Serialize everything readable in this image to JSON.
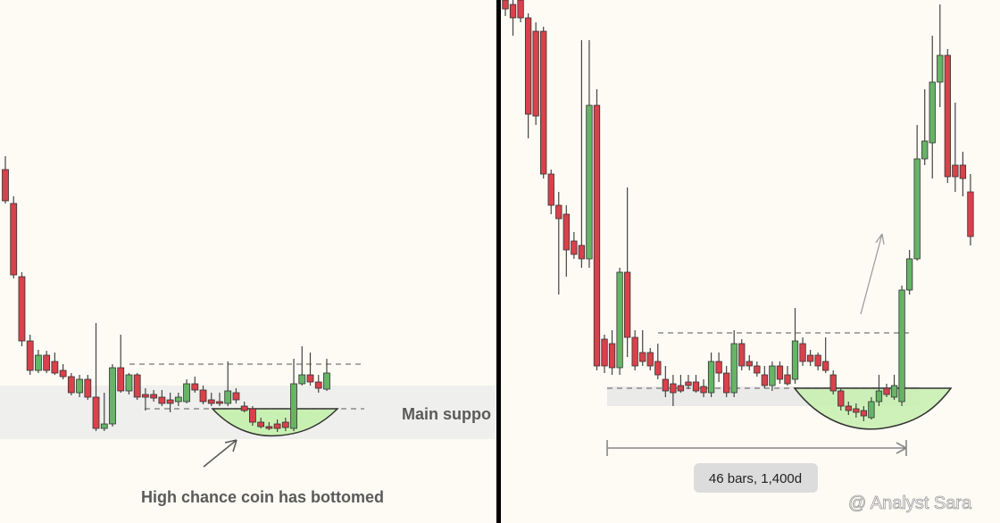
{
  "chart_data": [
    {
      "type": "candlestick",
      "ylim": [
        0,
        586
      ],
      "up_color": "#66b466",
      "down_color": "#d9414b",
      "annotations": [
        "Main suppo",
        "High chance coin has bottomed"
      ],
      "open": [
        396,
        358,
        276,
        204,
        171,
        188,
        181,
        171,
        164,
        146,
        161,
        141,
        106,
        111,
        174,
        148,
        166,
        144,
        144,
        141,
        138,
        136,
        136,
        156,
        149,
        138,
        136,
        134,
        146,
        131,
        128,
        113,
        108,
        111,
        113,
        106,
        156,
        166,
        158,
        150
      ],
      "high": [
        411,
        366,
        281,
        211,
        194,
        193,
        191,
        178,
        168,
        166,
        166,
        224,
        146,
        178,
        211,
        168,
        168,
        151,
        149,
        149,
        146,
        146,
        161,
        164,
        154,
        146,
        146,
        181,
        151,
        136,
        131,
        118,
        113,
        116,
        118,
        184,
        198,
        191,
        166,
        184
      ],
      "low": [
        358,
        274,
        198,
        166,
        168,
        168,
        166,
        161,
        143,
        141,
        138,
        103,
        103,
        108,
        146,
        144,
        138,
        126,
        136,
        131,
        124,
        131,
        134,
        146,
        133,
        131,
        131,
        131,
        134,
        124,
        109,
        106,
        104,
        102,
        103,
        103,
        154,
        154,
        146,
        148
      ],
      "close": [
        361,
        278,
        204,
        171,
        188,
        171,
        168,
        164,
        146,
        161,
        141,
        106,
        111,
        174,
        148,
        166,
        141,
        141,
        140,
        134,
        134,
        141,
        156,
        149,
        136,
        134,
        134,
        148,
        138,
        126,
        113,
        108,
        106,
        106,
        107,
        156,
        166,
        158,
        151,
        168
      ]
    },
    {
      "type": "candlestick",
      "ylim": [
        0,
        586
      ],
      "up_color": "#66b466",
      "down_color": "#d9414b",
      "annotations": [
        "46 bars, 1,400d"
      ],
      "open": [
        586,
        581,
        586,
        566,
        551,
        551,
        391,
        356,
        346,
        316,
        311,
        296,
        468,
        206,
        201,
        174,
        281,
        208,
        191,
        191,
        181,
        161,
        156,
        154,
        158,
        158,
        153,
        146,
        181,
        168,
        146,
        201,
        181,
        176,
        166,
        154,
        176,
        166,
        161,
        201,
        188,
        188,
        181,
        166,
        148,
        131,
        128,
        126,
        118,
        136,
        151,
        141,
        136,
        261,
        296,
        408,
        426,
        494,
        524,
        401,
        401,
        371
      ],
      "high": [
        586,
        586,
        586,
        571,
        561,
        556,
        396,
        371,
        356,
        326,
        541,
        541,
        486,
        211,
        216,
        286,
        376,
        216,
        216,
        196,
        201,
        176,
        166,
        166,
        166,
        166,
        161,
        191,
        191,
        176,
        216,
        206,
        188,
        181,
        176,
        181,
        181,
        176,
        241,
        208,
        194,
        191,
        208,
        171,
        151,
        136,
        134,
        131,
        141,
        166,
        156,
        166,
        266,
        306,
        446,
        486,
        546,
        581,
        531,
        471,
        416,
        391
      ],
      "low": [
        568,
        546,
        561,
        431,
        446,
        386,
        346,
        256,
        276,
        296,
        286,
        286,
        171,
        168,
        166,
        166,
        186,
        171,
        176,
        171,
        161,
        141,
        131,
        146,
        150,
        146,
        141,
        141,
        158,
        141,
        141,
        171,
        171,
        164,
        151,
        148,
        156,
        154,
        156,
        176,
        176,
        171,
        168,
        144,
        126,
        121,
        118,
        114,
        116,
        131,
        141,
        138,
        131,
        256,
        294,
        401,
        386,
        466,
        381,
        371,
        366,
        311
      ],
      "close": [
        576,
        566,
        566,
        458,
        456,
        391,
        356,
        341,
        306,
        301,
        296,
        468,
        176,
        176,
        174,
        281,
        208,
        176,
        181,
        176,
        166,
        148,
        146,
        148,
        154,
        148,
        146,
        181,
        168,
        146,
        201,
        176,
        176,
        168,
        154,
        176,
        161,
        156,
        204,
        181,
        181,
        176,
        171,
        148,
        131,
        126,
        124,
        120,
        136,
        148,
        144,
        154,
        261,
        296,
        408,
        428,
        494,
        524,
        388,
        388,
        386,
        321
      ]
    }
  ],
  "watermark": "@ Analyst Sara"
}
